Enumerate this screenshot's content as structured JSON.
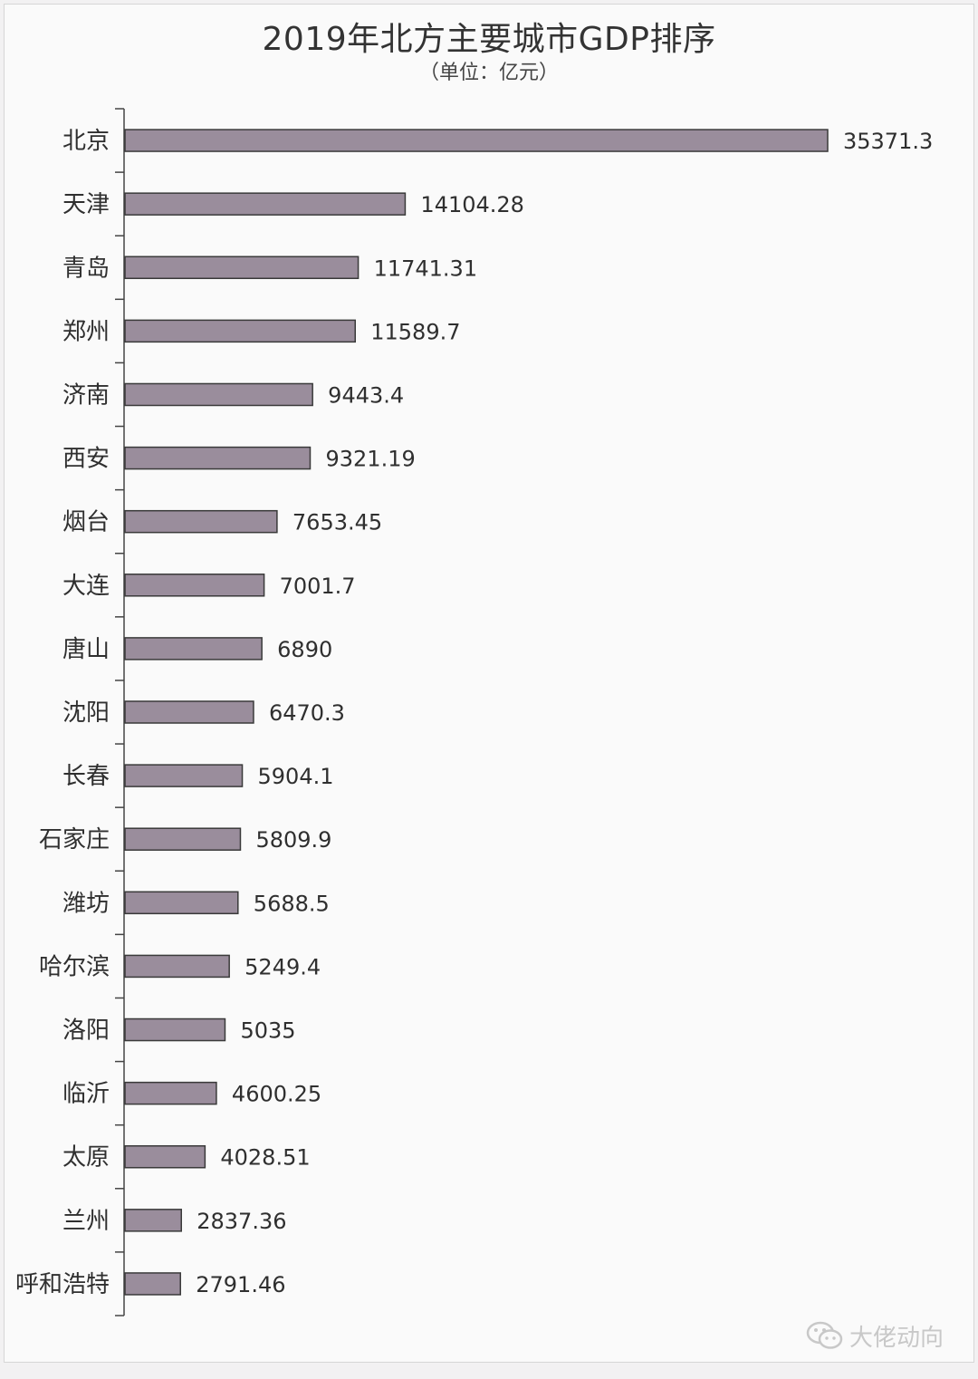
{
  "chart_data": {
    "type": "bar",
    "orientation": "horizontal",
    "title": "2019年北方主要城市GDP排序",
    "subtitle": "（单位：亿元）",
    "categories": [
      "北京",
      "天津",
      "青岛",
      "郑州",
      "济南",
      "西安",
      "烟台",
      "大连",
      "唐山",
      "沈阳",
      "长春",
      "石家庄",
      "潍坊",
      "哈尔滨",
      "洛阳",
      "临沂",
      "太原",
      "兰州",
      "呼和浩特"
    ],
    "values": [
      35371.3,
      14104.28,
      11741.31,
      11589.7,
      9443.4,
      9321.19,
      7653.45,
      7001.7,
      6890,
      6470.3,
      5904.1,
      5809.9,
      5688.5,
      5249.4,
      5035,
      4600.25,
      4028.51,
      2837.36,
      2791.46
    ],
    "value_labels": [
      "35371.3",
      "14104.28",
      "11741.31",
      "11589.7",
      "9443.4",
      "9321.19",
      "7653.45",
      "7001.7",
      "6890",
      "6470.3",
      "5904.1",
      "5809.9",
      "5688.5",
      "5249.4",
      "5035",
      "4600.25",
      "4028.51",
      "2837.36",
      "2791.46"
    ],
    "xlim": [
      0,
      35371.3
    ],
    "grid": false,
    "legend": "none",
    "bar_color": "#9a8d9c",
    "bar_edge_color": "#3a3a3a"
  },
  "watermark": {
    "text": "大佬动向",
    "icon": "wechat-icon"
  }
}
